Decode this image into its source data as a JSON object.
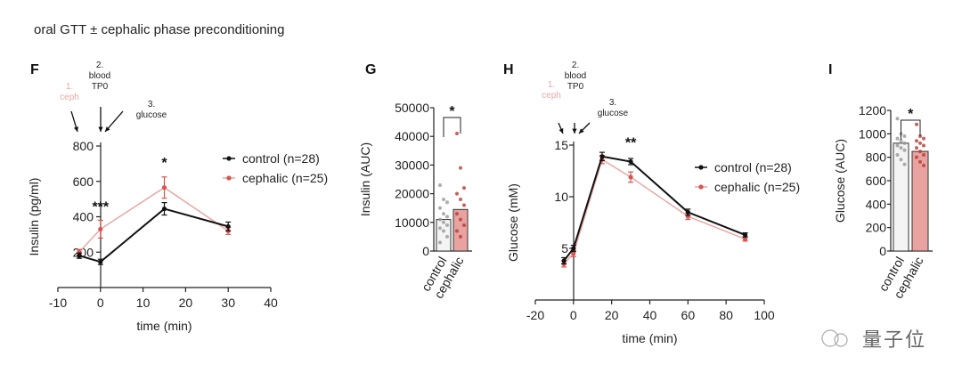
{
  "figure_title": "oral GTT ± cephalic phase preconditioning",
  "watermark": "量子位",
  "colors": {
    "control": "#111111",
    "cephalic": "#d9534f",
    "cephalic_light": "#e8a8a4",
    "control_bar_fill": "#f4f4f4",
    "cephalic_bar_fill": "#e8a3a0"
  },
  "chart_data": [
    {
      "panel": "F",
      "type": "line",
      "xlabel": "time (min)",
      "ylabel": "Insulin (pg/ml)",
      "xlim": [
        -10,
        40
      ],
      "ylim": [
        0,
        800
      ],
      "xticks": [
        -10,
        0,
        10,
        20,
        30,
        40
      ],
      "yticks": [
        200,
        400,
        600,
        800
      ],
      "x": [
        -5,
        0,
        15,
        30
      ],
      "series": [
        {
          "name": "control (n=28)",
          "values": [
            180,
            145,
            445,
            345
          ],
          "err": [
            15,
            15,
            35,
            25
          ]
        },
        {
          "name": "cephalic (n=25)",
          "values": [
            200,
            330,
            565,
            320
          ],
          "err": [
            15,
            50,
            60,
            20
          ]
        }
      ],
      "annotations": [
        {
          "text": "***",
          "x": 0,
          "y": 460
        },
        {
          "text": "*",
          "x": 15,
          "y": 710
        }
      ],
      "steps": [
        "1.",
        "ceph",
        "2.",
        "blood",
        "TP0",
        "3.",
        "glucose"
      ],
      "legend": "right"
    },
    {
      "panel": "G",
      "type": "bar",
      "ylabel": "Insulin (AUC)",
      "ylim": [
        0,
        50000
      ],
      "yticks": [
        0,
        10000,
        20000,
        30000,
        40000,
        50000
      ],
      "categories": [
        "control",
        "cephalic"
      ],
      "values": [
        11000,
        14500
      ],
      "points": [
        [
          23000,
          18000,
          17000,
          15000,
          13000,
          12000,
          11000,
          10000,
          9000,
          8000,
          7000,
          5000,
          3000
        ],
        [
          41000,
          29000,
          22000,
          20000,
          18000,
          16000,
          13000,
          11000,
          9000,
          7000,
          5000
        ]
      ],
      "annotations": [
        {
          "text": "*"
        }
      ]
    },
    {
      "panel": "H",
      "type": "line",
      "xlabel": "time (min)",
      "ylabel": "Glucose (mM)",
      "xlim": [
        -20,
        100
      ],
      "ylim": [
        0,
        15
      ],
      "xticks": [
        -20,
        0,
        20,
        40,
        60,
        80,
        100
      ],
      "yticks": [
        5,
        10,
        15
      ],
      "x": [
        -5,
        0,
        15,
        30,
        60,
        90
      ],
      "series": [
        {
          "name": "control (n=28)",
          "values": [
            3.8,
            5.0,
            13.9,
            13.4,
            8.5,
            6.3
          ],
          "err": [
            0.3,
            0.3,
            0.4,
            0.3,
            0.3,
            0.2
          ]
        },
        {
          "name": "cephalic (n=25)",
          "values": [
            3.5,
            4.5,
            13.6,
            11.9,
            8.1,
            5.9
          ],
          "err": [
            0.3,
            0.3,
            0.4,
            0.5,
            0.3,
            0.2
          ]
        }
      ],
      "annotations": [
        {
          "text": "**",
          "x": 30,
          "y": 15.3
        }
      ],
      "steps": [
        "1.",
        "ceph",
        "2.",
        "blood",
        "TP0",
        "3.",
        "glucose"
      ],
      "legend": "right"
    },
    {
      "panel": "I",
      "type": "bar",
      "ylabel": "Glucose (AUC)",
      "ylim": [
        0,
        1200
      ],
      "yticks": [
        0,
        200,
        400,
        600,
        800,
        1000,
        1200
      ],
      "categories": [
        "control",
        "cephalic"
      ],
      "values": [
        920,
        850
      ],
      "points": [
        [
          1130,
          1000,
          980,
          960,
          940,
          920,
          900,
          880,
          860,
          820,
          780,
          740
        ],
        [
          1080,
          980,
          960,
          940,
          920,
          900,
          880,
          850,
          820,
          800,
          760,
          730
        ]
      ],
      "annotations": [
        {
          "text": "*"
        }
      ]
    }
  ]
}
